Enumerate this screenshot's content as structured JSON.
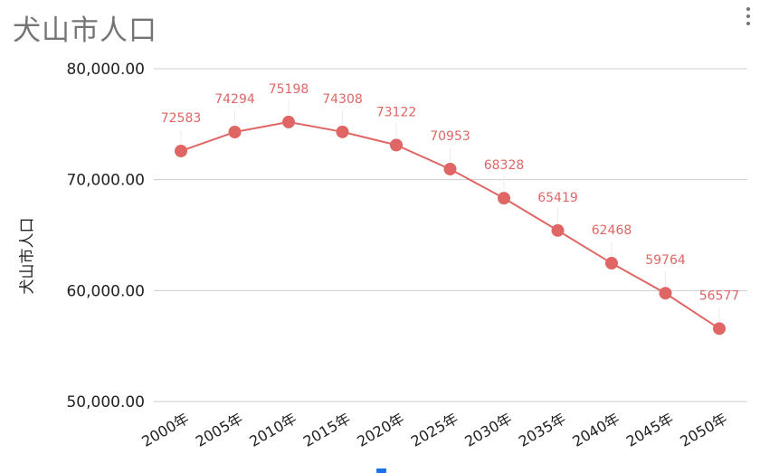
{
  "title": "犬山市人口",
  "menu_icon": "more-vert-icon",
  "colors": {
    "series": "#e06666",
    "grid": "#cccccc",
    "title": "#757575",
    "text": "#222222",
    "indicator": "#1a73e8"
  },
  "chart_data": {
    "type": "line",
    "title": "犬山市人口",
    "xlabel": "",
    "ylabel": "犬山市人口",
    "categories": [
      "2000年",
      "2005年",
      "2010年",
      "2015年",
      "2020年",
      "2025年",
      "2030年",
      "2035年",
      "2040年",
      "2045年",
      "2050年"
    ],
    "series": [
      {
        "name": "",
        "values": [
          72583,
          74294,
          75198,
          74308,
          73122,
          70953,
          68328,
          65419,
          62468,
          59764,
          56577
        ]
      }
    ],
    "data_labels": [
      "72583",
      "74294",
      "75198",
      "74308",
      "73122",
      "70953",
      "68328",
      "65419",
      "62468",
      "59764",
      "56577"
    ],
    "ylim": [
      50000,
      80000
    ],
    "yticks": [
      50000,
      60000,
      70000,
      80000
    ],
    "ytick_labels": [
      "50,000.00",
      "60,000.00",
      "70,000.00",
      "80,000.00"
    ],
    "grid": true,
    "legend": "none"
  }
}
